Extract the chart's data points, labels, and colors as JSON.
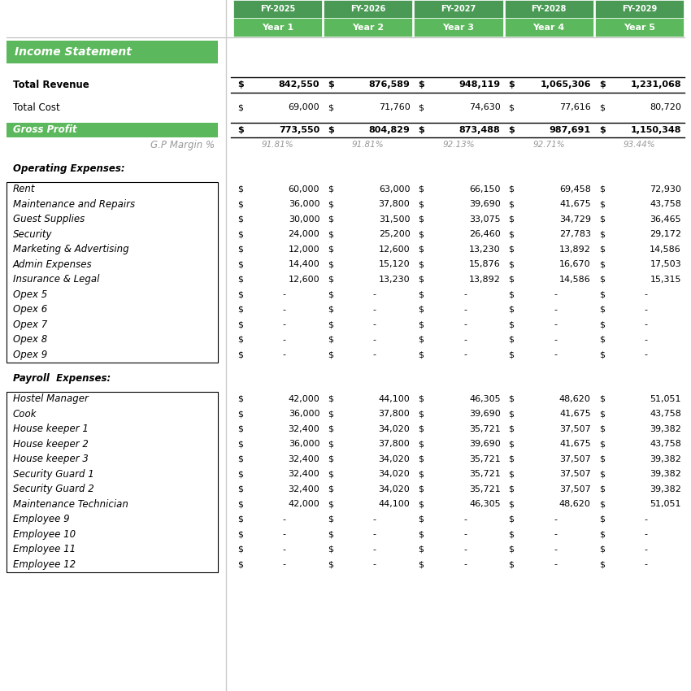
{
  "green_dark": "#4a9a55",
  "green_light": "#5cb85c",
  "white": "#ffffff",
  "black": "#000000",
  "gray_text": "#999999",
  "years": [
    "FY-2025",
    "FY-2026",
    "FY-2027",
    "FY-2028",
    "FY-2029"
  ],
  "year_subs": [
    "Year 1",
    "Year 2",
    "Year 3",
    "Year 4",
    "Year 5"
  ],
  "rows": [
    {
      "label": "Total Revenue",
      "bold": true,
      "border_top": true,
      "border_bottom": true,
      "values": [
        "842,550",
        "876,589",
        "948,119",
        "1,065,306",
        "1,231,068"
      ],
      "val_bold": true
    },
    {
      "spacer": true,
      "size": 0.5
    },
    {
      "label": "Total Cost",
      "values": [
        "69,000",
        "71,760",
        "74,630",
        "77,616",
        "80,720"
      ]
    },
    {
      "spacer": true,
      "size": 0.5
    },
    {
      "label": "Gross Profit",
      "bold": true,
      "italic": true,
      "green_bg": true,
      "border_top": true,
      "border_bottom": true,
      "values": [
        "773,550",
        "804,829",
        "873,488",
        "987,691",
        "1,150,348"
      ],
      "val_bold": true
    },
    {
      "label": "G.P Margin %",
      "italic": true,
      "gray": true,
      "right_align": true,
      "values": [
        "91.81%",
        "91.81%",
        "92.13%",
        "92.71%",
        "93.44%"
      ],
      "gray_values": true,
      "no_dollar": true
    },
    {
      "spacer": true,
      "size": 0.6
    },
    {
      "label": "Operating Expenses:",
      "bold": true,
      "italic": true
    },
    {
      "spacer": true,
      "size": 0.35
    },
    {
      "label": "Rent",
      "italic": true,
      "box_start": "opex",
      "values": [
        "60,000",
        "63,000",
        "66,150",
        "69,458",
        "72,930"
      ]
    },
    {
      "label": "Maintenance and Repairs",
      "italic": true,
      "values": [
        "36,000",
        "37,800",
        "39,690",
        "41,675",
        "43,758"
      ]
    },
    {
      "label": "Guest Supplies",
      "italic": true,
      "values": [
        "30,000",
        "31,500",
        "33,075",
        "34,729",
        "36,465"
      ]
    },
    {
      "label": "Security",
      "italic": true,
      "values": [
        "24,000",
        "25,200",
        "26,460",
        "27,783",
        "29,172"
      ]
    },
    {
      "label": "Marketing & Advertising",
      "italic": true,
      "values": [
        "12,000",
        "12,600",
        "13,230",
        "13,892",
        "14,586"
      ]
    },
    {
      "label": "Admin Expenses",
      "italic": true,
      "values": [
        "14,400",
        "15,120",
        "15,876",
        "16,670",
        "17,503"
      ]
    },
    {
      "label": "Insurance & Legal",
      "italic": true,
      "values": [
        "12,600",
        "13,230",
        "13,892",
        "14,586",
        "15,315"
      ]
    },
    {
      "label": "Opex 5",
      "italic": true,
      "dash": true,
      "values": [
        "-",
        "-",
        "-",
        "-",
        "-"
      ]
    },
    {
      "label": "Opex 6",
      "italic": true,
      "dash": true,
      "values": [
        "-",
        "-",
        "-",
        "-",
        "-"
      ]
    },
    {
      "label": "Opex 7",
      "italic": true,
      "dash": true,
      "values": [
        "-",
        "-",
        "-",
        "-",
        "-"
      ]
    },
    {
      "label": "Opex 8",
      "italic": true,
      "dash": true,
      "values": [
        "-",
        "-",
        "-",
        "-",
        "-"
      ]
    },
    {
      "label": "Opex 9",
      "italic": true,
      "dash": true,
      "box_end": "opex",
      "values": [
        "-",
        "-",
        "-",
        "-",
        "-"
      ]
    },
    {
      "spacer": true,
      "size": 0.6
    },
    {
      "label": "Payroll  Expenses:",
      "bold": true,
      "italic": true
    },
    {
      "spacer": true,
      "size": 0.35
    },
    {
      "label": "Hostel Manager",
      "italic": true,
      "box_start": "payroll",
      "values": [
        "42,000",
        "44,100",
        "46,305",
        "48,620",
        "51,051"
      ]
    },
    {
      "label": "Cook",
      "italic": true,
      "values": [
        "36,000",
        "37,800",
        "39,690",
        "41,675",
        "43,758"
      ]
    },
    {
      "label": "House keeper 1",
      "italic": true,
      "values": [
        "32,400",
        "34,020",
        "35,721",
        "37,507",
        "39,382"
      ]
    },
    {
      "label": "House keeper 2",
      "italic": true,
      "values": [
        "36,000",
        "37,800",
        "39,690",
        "41,675",
        "43,758"
      ]
    },
    {
      "label": "House keeper 3",
      "italic": true,
      "values": [
        "32,400",
        "34,020",
        "35,721",
        "37,507",
        "39,382"
      ]
    },
    {
      "label": "Security Guard 1",
      "italic": true,
      "values": [
        "32,400",
        "34,020",
        "35,721",
        "37,507",
        "39,382"
      ]
    },
    {
      "label": "Security Guard 2",
      "italic": true,
      "values": [
        "32,400",
        "34,020",
        "35,721",
        "37,507",
        "39,382"
      ]
    },
    {
      "label": "Maintenance Technician",
      "italic": true,
      "values": [
        "42,000",
        "44,100",
        "46,305",
        "48,620",
        "51,051"
      ]
    },
    {
      "label": "Employee 9",
      "italic": true,
      "dash": true,
      "values": [
        "-",
        "-",
        "-",
        "-",
        "-"
      ]
    },
    {
      "label": "Employee 10",
      "italic": true,
      "dash": true,
      "values": [
        "-",
        "-",
        "-",
        "-",
        "-"
      ]
    },
    {
      "label": "Employee 11",
      "italic": true,
      "dash": true,
      "values": [
        "-",
        "-",
        "-",
        "-",
        "-"
      ]
    },
    {
      "label": "Employee 12",
      "italic": true,
      "dash": true,
      "box_end": "payroll",
      "values": [
        "-",
        "-",
        "-",
        "-",
        "-"
      ]
    }
  ]
}
